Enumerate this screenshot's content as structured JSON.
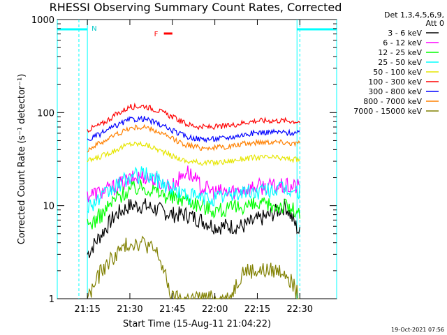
{
  "chart_data": {
    "type": "line",
    "title": "RHESSI Observing Summary Count Rates, Corrected",
    "xlabel": "Start Time (15-Aug-11 21:04:22)",
    "ylabel": "Corrected Count Rate (s⁻¹ detector⁻¹)",
    "y_scale": "log",
    "ylim": [
      1,
      1000
    ],
    "xlim": [
      "21:04:22",
      "22:43:00"
    ],
    "x_ticks": [
      "21:15",
      "21:30",
      "21:45",
      "22:00",
      "22:15",
      "22:30"
    ],
    "y_ticks": [
      "1",
      "10",
      "100",
      "1000"
    ],
    "legend_header": [
      "Det 1,3,4,5,6,9,",
      "Att 0"
    ],
    "legend_placement": "right",
    "grid": false,
    "night_intervals": [
      [
        "21:04:22",
        "21:15"
      ],
      [
        "22:29",
        "22:43"
      ]
    ],
    "night_label": "N",
    "saa_lines": [
      "21:12",
      "22:30"
    ],
    "flare_label": "F",
    "flare_interval": [
      "21:42",
      "21:45"
    ],
    "series": [
      {
        "name": "3 - 6 keV",
        "color": "#000000",
        "x": [
          "21:15",
          "21:20",
          "21:25",
          "21:30",
          "21:35",
          "21:40",
          "21:45",
          "21:50",
          "21:55",
          "22:00",
          "22:05",
          "22:10",
          "22:15",
          "22:20",
          "22:25",
          "22:30"
        ],
        "values": [
          3,
          5,
          8,
          10,
          10,
          9,
          8,
          8,
          7,
          6,
          6,
          6,
          7,
          8,
          10,
          5
        ]
      },
      {
        "name": "6 - 12 keV",
        "color": "#ff00ff",
        "x": [
          "21:15",
          "21:20",
          "21:25",
          "21:30",
          "21:35",
          "21:40",
          "21:45",
          "21:50",
          "21:55",
          "22:00",
          "22:05",
          "22:10",
          "22:15",
          "22:20",
          "22:25",
          "22:30"
        ],
        "values": [
          13,
          14,
          16,
          19,
          21,
          18,
          16,
          24,
          16,
          14,
          14,
          15,
          16,
          16,
          16,
          16
        ]
      },
      {
        "name": "12 - 25 keV",
        "color": "#00ff00",
        "x": [
          "21:15",
          "21:20",
          "21:25",
          "21:30",
          "21:35",
          "21:40",
          "21:45",
          "21:50",
          "21:55",
          "22:00",
          "22:05",
          "22:10",
          "22:15",
          "22:20",
          "22:25",
          "22:30"
        ],
        "values": [
          6,
          8,
          12,
          15,
          16,
          14,
          12,
          12,
          10,
          9,
          9,
          10,
          10,
          10,
          10,
          8
        ]
      },
      {
        "name": "25 - 50 keV",
        "color": "#00ffff",
        "x": [
          "21:15",
          "21:20",
          "21:25",
          "21:30",
          "21:35",
          "21:40",
          "21:45",
          "21:50",
          "21:55",
          "22:00",
          "22:05",
          "22:10",
          "22:15",
          "22:20",
          "22:25",
          "22:30"
        ],
        "values": [
          10,
          12,
          16,
          20,
          22,
          19,
          15,
          13,
          12,
          12,
          13,
          14,
          14,
          15,
          15,
          14
        ]
      },
      {
        "name": "50 - 100 keV",
        "color": "#e6e600",
        "x": [
          "21:15",
          "21:20",
          "21:25",
          "21:30",
          "21:35",
          "21:40",
          "21:45",
          "21:50",
          "21:55",
          "22:00",
          "22:05",
          "22:10",
          "22:15",
          "22:20",
          "22:25",
          "22:30"
        ],
        "values": [
          30,
          34,
          40,
          46,
          46,
          40,
          34,
          30,
          29,
          29,
          30,
          32,
          33,
          33,
          32,
          31
        ]
      },
      {
        "name": "100 - 300 keV",
        "color": "#ff0000",
        "x": [
          "21:15",
          "21:20",
          "21:25",
          "21:30",
          "21:35",
          "21:40",
          "21:45",
          "21:50",
          "21:55",
          "22:00",
          "22:05",
          "22:10",
          "22:15",
          "22:20",
          "22:25",
          "22:30"
        ],
        "values": [
          65,
          75,
          95,
          115,
          118,
          105,
          90,
          75,
          70,
          70,
          72,
          78,
          82,
          82,
          82,
          80
        ]
      },
      {
        "name": "300 - 800 keV",
        "color": "#0000ff",
        "x": [
          "21:15",
          "21:20",
          "21:25",
          "21:30",
          "21:35",
          "21:40",
          "21:45",
          "21:50",
          "21:55",
          "22:00",
          "22:05",
          "22:10",
          "22:15",
          "22:20",
          "22:25",
          "22:30"
        ],
        "values": [
          50,
          60,
          72,
          84,
          86,
          76,
          64,
          55,
          52,
          52,
          54,
          58,
          61,
          62,
          61,
          60
        ]
      },
      {
        "name": "800 - 7000 keV",
        "color": "#ff8000",
        "x": [
          "21:15",
          "21:20",
          "21:25",
          "21:30",
          "21:35",
          "21:40",
          "21:45",
          "21:50",
          "21:55",
          "22:00",
          "22:05",
          "22:10",
          "22:15",
          "22:20",
          "22:25",
          "22:30"
        ],
        "values": [
          40,
          48,
          58,
          68,
          70,
          62,
          52,
          45,
          42,
          42,
          43,
          46,
          48,
          49,
          48,
          46
        ]
      },
      {
        "name": "7000 - 15000 keV",
        "color": "#808000",
        "x": [
          "21:15",
          "21:20",
          "21:25",
          "21:30",
          "21:35",
          "21:40",
          "21:45",
          "21:50",
          "21:55",
          "22:00",
          "22:05",
          "22:10",
          "22:15",
          "22:20",
          "22:25",
          "22:30"
        ],
        "values": [
          1,
          2,
          3,
          4,
          4,
          3,
          1,
          1,
          1,
          1,
          1,
          2,
          2,
          2,
          2,
          1
        ]
      }
    ]
  },
  "footer": {
    "date_stamp": "19-Oct-2021 07:56"
  }
}
